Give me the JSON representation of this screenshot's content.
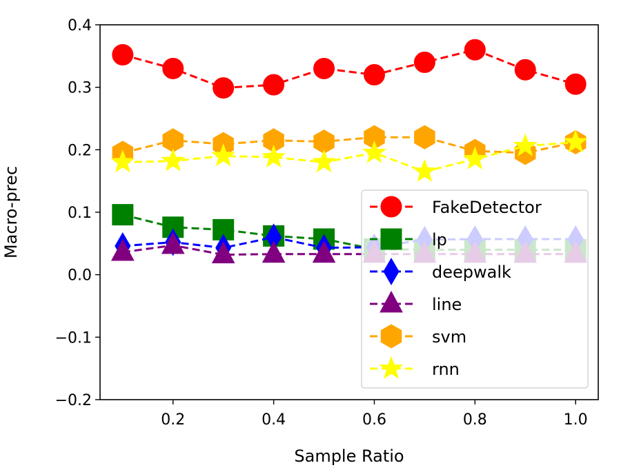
{
  "chart_data": {
    "type": "line",
    "title": "",
    "xlabel": "Sample Ratio",
    "ylabel": "Macro-prec",
    "x": [
      0.1,
      0.2,
      0.3,
      0.4,
      0.5,
      0.6,
      0.7,
      0.8,
      0.9,
      1.0
    ],
    "xlim": [
      0.055,
      1.045
    ],
    "ylim": [
      -0.2,
      0.4
    ],
    "xticks": [
      0.2,
      0.4,
      0.6,
      0.8,
      1.0
    ],
    "xtick_labels": [
      "0.2",
      "0.4",
      "0.6",
      "0.8",
      "1.0"
    ],
    "yticks": [
      -0.2,
      -0.1,
      0.0,
      0.1,
      0.2,
      0.3,
      0.4
    ],
    "ytick_labels": [
      "−0.2",
      "−0.1",
      "0.0",
      "0.1",
      "0.2",
      "0.3",
      "0.4"
    ],
    "grid": false,
    "legend_position": "lower-right",
    "series": [
      {
        "name": "FakeDetector",
        "color": "#ff0000",
        "marker": "circle",
        "values": [
          0.352,
          0.33,
          0.299,
          0.304,
          0.33,
          0.32,
          0.34,
          0.36,
          0.328,
          0.305
        ]
      },
      {
        "name": "lp",
        "color": "#008000",
        "marker": "square",
        "values": [
          0.096,
          0.076,
          0.072,
          0.062,
          0.057,
          0.041,
          0.04,
          0.04,
          0.04,
          0.04
        ]
      },
      {
        "name": "deepwalk",
        "color": "#0000ff",
        "marker": "diamond",
        "values": [
          0.046,
          0.052,
          0.043,
          0.06,
          0.043,
          0.044,
          0.056,
          0.057,
          0.057,
          0.057
        ]
      },
      {
        "name": "line",
        "color": "#800080",
        "marker": "triangle",
        "values": [
          0.036,
          0.047,
          0.032,
          0.033,
          0.033,
          0.033,
          0.033,
          0.033,
          0.033,
          0.033
        ]
      },
      {
        "name": "svm",
        "color": "#ffa500",
        "marker": "hexagon",
        "values": [
          0.195,
          0.215,
          0.209,
          0.215,
          0.213,
          0.22,
          0.22,
          0.198,
          0.195,
          0.212
        ]
      },
      {
        "name": "rnn",
        "color": "#ffff00",
        "marker": "star",
        "values": [
          0.18,
          0.182,
          0.19,
          0.188,
          0.18,
          0.195,
          0.165,
          0.185,
          0.206,
          0.212
        ]
      }
    ]
  }
}
